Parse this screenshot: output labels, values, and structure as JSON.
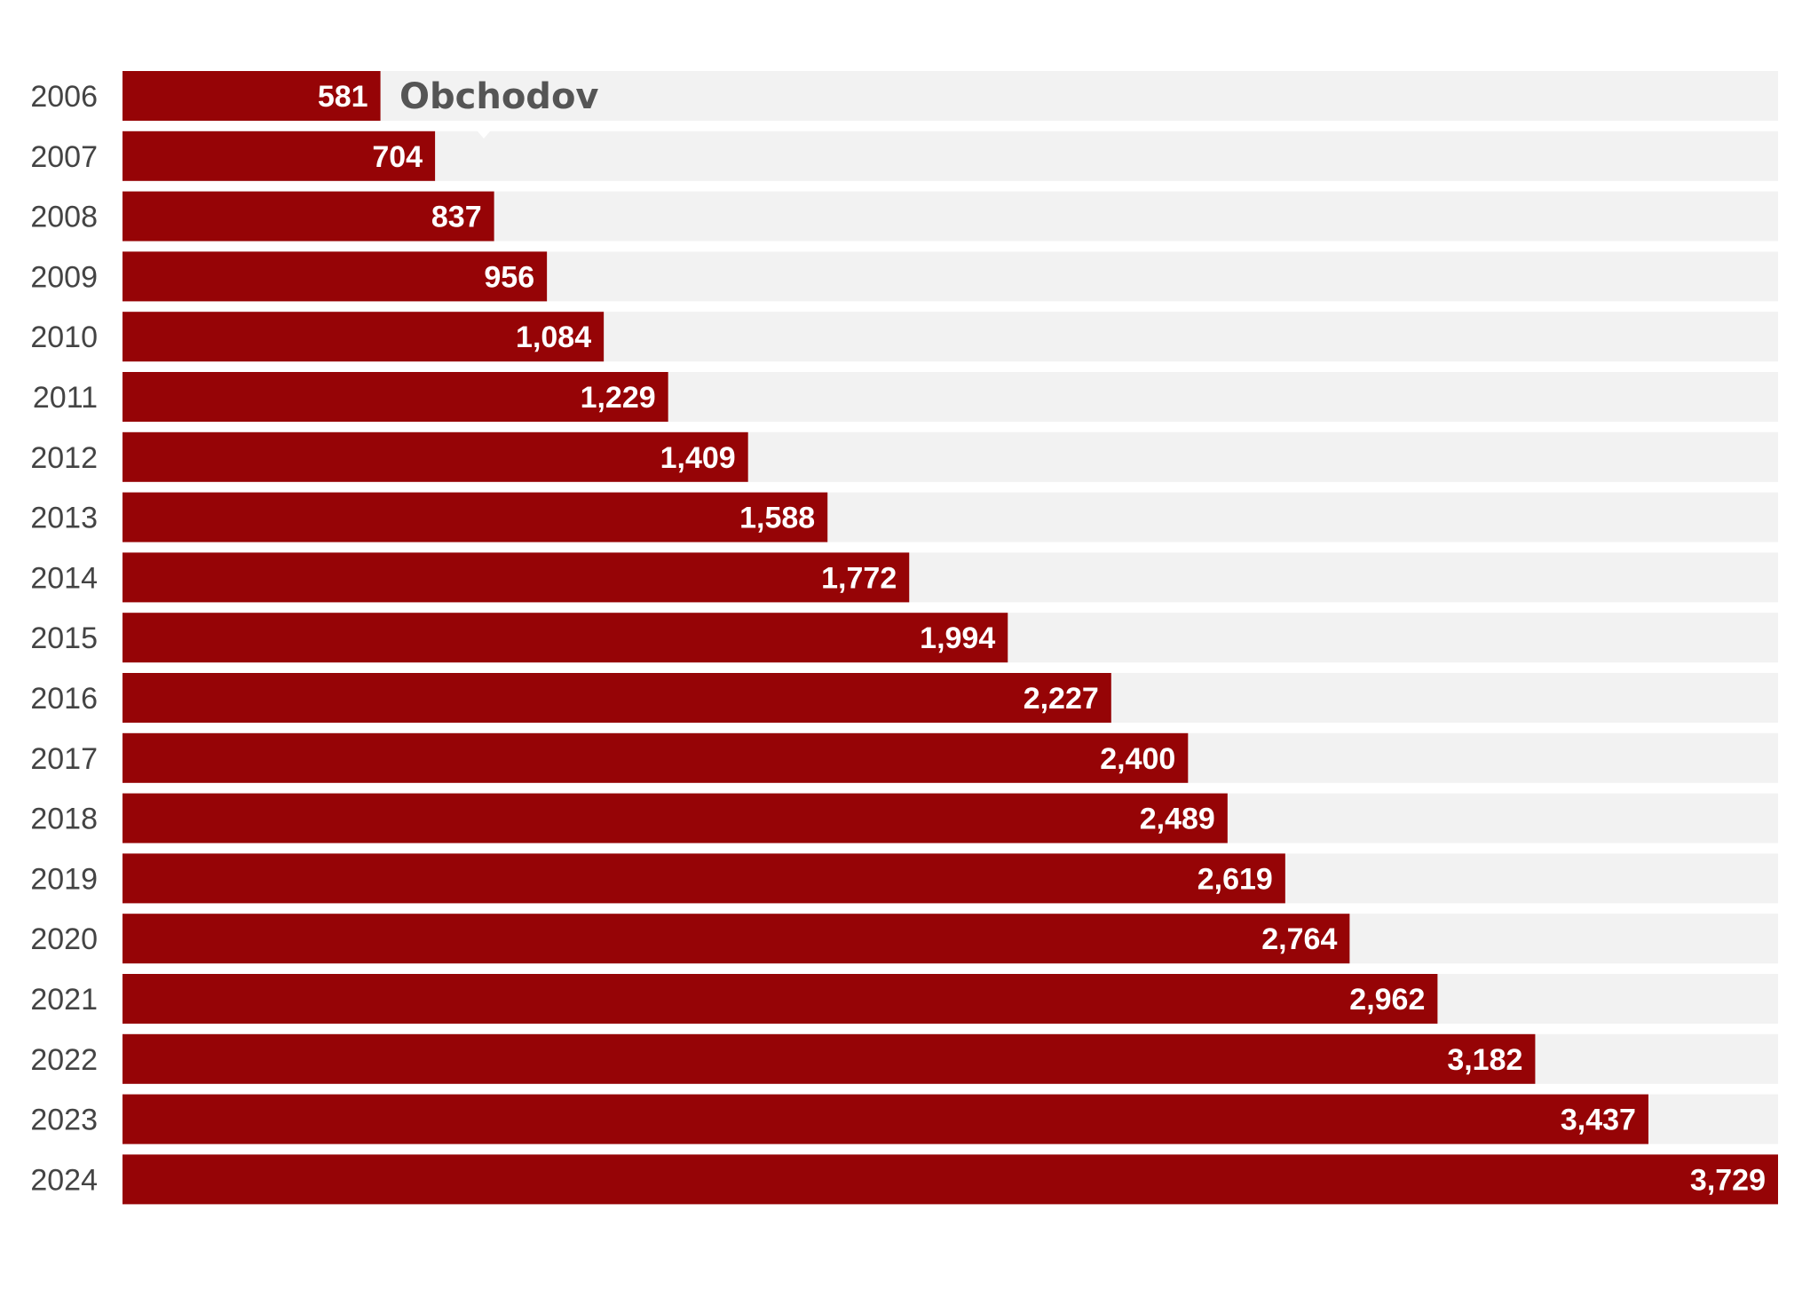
{
  "chart_data": {
    "type": "bar",
    "orientation": "horizontal",
    "categories": [
      "2006",
      "2007",
      "2008",
      "2009",
      "2010",
      "2011",
      "2012",
      "2013",
      "2014",
      "2015",
      "2016",
      "2017",
      "2018",
      "2019",
      "2020",
      "2021",
      "2022",
      "2023",
      "2024"
    ],
    "values": [
      581,
      704,
      837,
      956,
      1084,
      1229,
      1409,
      1588,
      1772,
      1994,
      2227,
      2400,
      2489,
      2619,
      2764,
      2962,
      3182,
      3437,
      3729
    ],
    "value_labels": [
      "581",
      "704",
      "837",
      "956",
      "1,084",
      "1,229",
      "1,409",
      "1,588",
      "1,772",
      "1,994",
      "2,227",
      "2,400",
      "2,489",
      "2,619",
      "2,764",
      "2,962",
      "3,182",
      "3,437",
      "3,729"
    ],
    "annotation": "Obchodov",
    "xlim": [
      0,
      3729
    ],
    "grid": false,
    "legend": "none",
    "colors": {
      "bar": "#960406",
      "track": "#f2f2f2",
      "year_text": "#444444",
      "value_text": "#ffffff",
      "annotation_text": "#555555"
    }
  }
}
